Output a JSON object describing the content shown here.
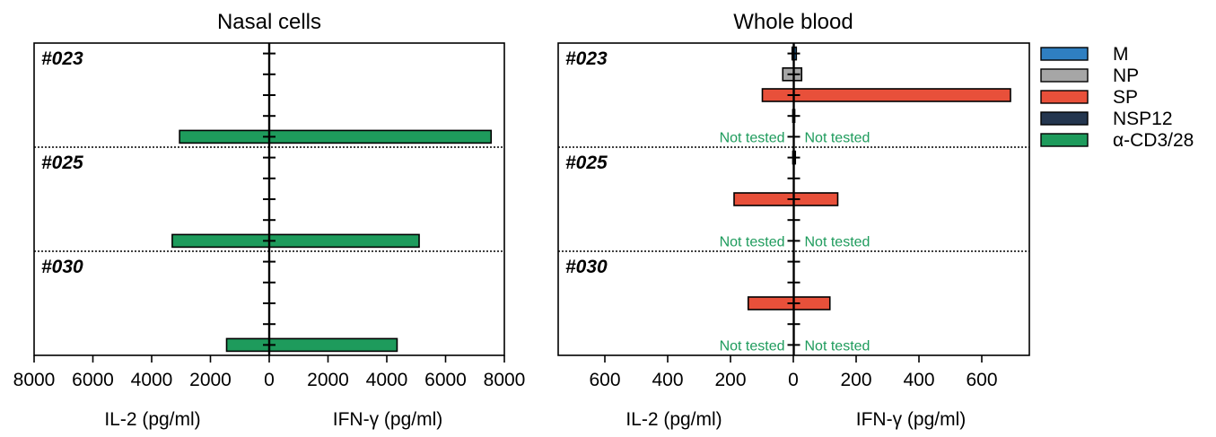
{
  "chart_data": [
    {
      "type": "bar",
      "orientation": "horizontal-diverging",
      "title": "Nasal cells",
      "xlabel_left": "IL-2 (pg/ml)",
      "xlabel_right": "IFN-γ (pg/ml)",
      "xlim": [
        -8000,
        8000
      ],
      "x_ticks": [
        "8000",
        "6000",
        "4000",
        "2000",
        "0",
        "2000",
        "4000",
        "6000",
        "8000"
      ],
      "grid": false,
      "groups": [
        {
          "label": "#023",
          "bars": [
            {
              "antigen": "M",
              "il2": 0,
              "ifng": 0
            },
            {
              "antigen": "NP",
              "il2": 0,
              "ifng": 0
            },
            {
              "antigen": "SP",
              "il2": 0,
              "ifng": 0
            },
            {
              "antigen": "NSP12",
              "il2": 0,
              "ifng": 0
            },
            {
              "antigen": "α-CD3/28",
              "il2": 3050,
              "ifng": 7550
            }
          ]
        },
        {
          "label": "#025",
          "bars": [
            {
              "antigen": "M",
              "il2": 0,
              "ifng": 0
            },
            {
              "antigen": "NP",
              "il2": 0,
              "ifng": 0
            },
            {
              "antigen": "SP",
              "il2": 0,
              "ifng": 0
            },
            {
              "antigen": "NSP12",
              "il2": 0,
              "ifng": 0
            },
            {
              "antigen": "α-CD3/28",
              "il2": 3300,
              "ifng": 5100
            }
          ]
        },
        {
          "label": "#030",
          "bars": [
            {
              "antigen": "M",
              "il2": 0,
              "ifng": 0
            },
            {
              "antigen": "NP",
              "il2": 0,
              "ifng": 0
            },
            {
              "antigen": "SP",
              "il2": 0,
              "ifng": 0
            },
            {
              "antigen": "NSP12",
              "il2": 0,
              "ifng": 0
            },
            {
              "antigen": "α-CD3/28",
              "il2": 1450,
              "ifng": 4350
            }
          ]
        }
      ]
    },
    {
      "type": "bar",
      "orientation": "horizontal-diverging",
      "title": "Whole blood",
      "xlabel_left": "IL-2 (pg/ml)",
      "xlabel_right": "IFN-γ (pg/ml)",
      "xlim": [
        -750,
        750
      ],
      "x_ticks": [
        "600",
        "400",
        "200",
        "0",
        "200",
        "400",
        "600"
      ],
      "grid": false,
      "not_tested_text": "Not tested",
      "groups": [
        {
          "label": "#023",
          "bars": [
            {
              "antigen": "M",
              "il2": 5,
              "ifng": 8
            },
            {
              "antigen": "NP",
              "il2": 35,
              "ifng": 25
            },
            {
              "antigen": "SP",
              "il2": 100,
              "ifng": 690
            },
            {
              "antigen": "NSP12",
              "il2": 3,
              "ifng": 3
            },
            {
              "antigen": "α-CD3/28",
              "not_tested": true
            }
          ]
        },
        {
          "label": "#025",
          "bars": [
            {
              "antigen": "M",
              "il2": 3,
              "ifng": 5
            },
            {
              "antigen": "NP",
              "il2": 0,
              "ifng": 0
            },
            {
              "antigen": "SP",
              "il2": 190,
              "ifng": 140
            },
            {
              "antigen": "NSP12",
              "il2": 0,
              "ifng": 0
            },
            {
              "antigen": "α-CD3/28",
              "not_tested": true
            }
          ]
        },
        {
          "label": "#030",
          "bars": [
            {
              "antigen": "M",
              "il2": 0,
              "ifng": 0
            },
            {
              "antigen": "NP",
              "il2": 0,
              "ifng": 0
            },
            {
              "antigen": "SP",
              "il2": 145,
              "ifng": 115
            },
            {
              "antigen": "NSP12",
              "il2": 0,
              "ifng": 0
            },
            {
              "antigen": "α-CD3/28",
              "not_tested": true
            }
          ]
        }
      ]
    }
  ],
  "legend": {
    "placement": "right",
    "entries": [
      {
        "label": "M",
        "color": "#2f7fc1"
      },
      {
        "label": "NP",
        "color": "#a6a6a6"
      },
      {
        "label": "SP",
        "color": "#e8503a"
      },
      {
        "label": "NSP12",
        "color": "#24364f"
      },
      {
        "label": "α-CD3/28",
        "color": "#1e9b5c"
      }
    ]
  },
  "colors": {
    "not_tested_text": "#1e9b5c",
    "axis": "#000000"
  }
}
